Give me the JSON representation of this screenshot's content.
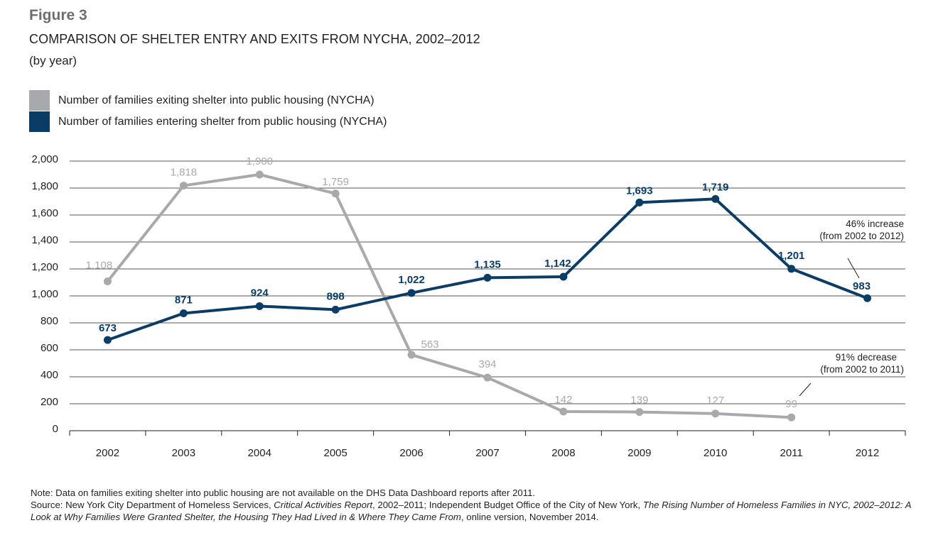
{
  "figure": {
    "label": "Figure 3",
    "title": "COMPARISON OF SHELTER ENTRY AND EXITS FROM NYCHA, 2002–2012",
    "subtitle": "(by year)"
  },
  "colors": {
    "exiting": "#a7a9ac",
    "entering": "#0b3c66",
    "text": "#231f20"
  },
  "chart_data": {
    "type": "line",
    "title": "COMPARISON OF SHELTER ENTRY AND EXITS FROM NYCHA, 2002–2012",
    "xlabel": "",
    "ylabel": "",
    "categories": [
      "2002",
      "2003",
      "2004",
      "2005",
      "2006",
      "2007",
      "2008",
      "2009",
      "2010",
      "2011",
      "2012"
    ],
    "ylim": [
      0,
      2000
    ],
    "yticks": [
      0,
      200,
      400,
      600,
      800,
      1000,
      1200,
      1400,
      1600,
      1800,
      2000
    ],
    "ytick_labels": [
      "0",
      "200",
      "400",
      "600",
      "800",
      "1,000",
      "1,200",
      "1,400",
      "1,600",
      "1,800",
      "2,000"
    ],
    "grid": true,
    "legend_position": "top-left",
    "series": [
      {
        "name": "Number of families exiting shelter into public housing (NYCHA)",
        "key": "exiting",
        "values": [
          1108,
          1818,
          1900,
          1759,
          563,
          394,
          142,
          139,
          127,
          99,
          null
        ],
        "labels": [
          "1,108",
          "1,818",
          "1,900",
          "1,759",
          "563",
          "394",
          "142",
          "139",
          "127",
          "99",
          ""
        ]
      },
      {
        "name": "Number of families entering shelter from public housing (NYCHA)",
        "key": "entering",
        "values": [
          673,
          871,
          924,
          898,
          1022,
          1135,
          1142,
          1693,
          1719,
          1201,
          983
        ],
        "labels": [
          "673",
          "871",
          "924",
          "898",
          "1,022",
          "1,135",
          "1,142",
          "1,693",
          "1,719",
          "1,201",
          "983"
        ]
      }
    ],
    "annotations": [
      {
        "key": "increase",
        "line1": "46% increase",
        "line2": "(from 2002 to 2012)"
      },
      {
        "key": "decrease",
        "line1": "91% decrease",
        "line2": "(from 2002 to 2011)"
      }
    ]
  },
  "notes": {
    "note": "Note: Data on families exiting shelter into public housing are not available on the DHS Data Dashboard reports after 2011.",
    "source_prefix": "Source: New York City Department of Homeless Services, ",
    "source_title1": "Critical Activities Report",
    "source_mid": ", 2002–2011; Independent Budget Office of the City of New York, ",
    "source_title2": "The Rising Number of Homeless Families in NYC, 2002–2012: A Look at Why Families Were Granted Shelter, the Housing They Had Lived in & Where They Came From",
    "source_suffix": ", online version, November 2014."
  }
}
